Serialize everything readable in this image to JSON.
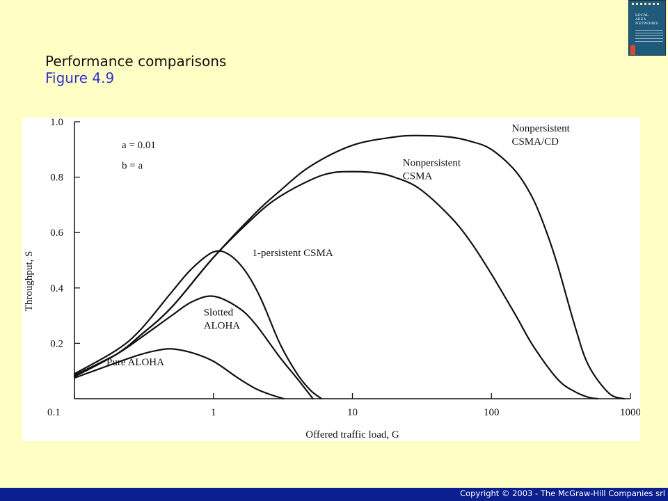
{
  "slide": {
    "title": "Performance comparisons",
    "subtitle": "Figure 4.9",
    "footer": "Copyright © 2003 - The McGraw-Hill Companies srl",
    "colors": {
      "background": "#FFFFC5",
      "subtitle": "#3333CC",
      "footer_bar": "#0B1F8E"
    },
    "book_cover": {
      "icon": "book-cover-icon",
      "title_lines": [
        "LOCAL",
        "AREA",
        "NETWORKS"
      ]
    }
  },
  "chart_data": {
    "type": "line",
    "title": "",
    "xlabel": "Offered traffic load, G",
    "ylabel": "Throughput, S",
    "xscale": "log",
    "xlim": [
      0.1,
      1000
    ],
    "ylim": [
      0,
      1.0
    ],
    "x_ticks": [
      0.1,
      1,
      10,
      100,
      1000
    ],
    "x_tick_labels": [
      "0.1",
      "1",
      "10",
      "100",
      "1000"
    ],
    "y_ticks": [
      0.2,
      0.4,
      0.6,
      0.8,
      1.0
    ],
    "y_tick_labels": [
      "0.2",
      "0.4",
      "0.6",
      "0.8",
      "1.0"
    ],
    "grid": false,
    "legend": "none",
    "annotations": [
      {
        "name": "param-a",
        "lines": [
          "a = 0.01"
        ]
      },
      {
        "name": "param-b",
        "lines": [
          "b = a"
        ]
      }
    ],
    "series": [
      {
        "name": "Pure ALOHA",
        "label_lines": [
          "Pure ALOHA"
        ],
        "label_anchor": [
          0.17,
          0.12
        ],
        "x": [
          0.1,
          0.2,
          0.3,
          0.4,
          0.5,
          0.7,
          1,
          1.5,
          2,
          2.5,
          3.2
        ],
        "y": [
          0.075,
          0.13,
          0.16,
          0.175,
          0.18,
          0.166,
          0.135,
          0.075,
          0.037,
          0.017,
          0.0
        ]
      },
      {
        "name": "Slotted ALOHA",
        "label_lines": [
          "Slotted",
          "ALOHA"
        ],
        "label_anchor": [
          0.85,
          0.3
        ],
        "x": [
          0.1,
          0.2,
          0.3,
          0.5,
          0.7,
          1,
          1.5,
          2,
          3,
          4,
          5.2
        ],
        "y": [
          0.085,
          0.16,
          0.22,
          0.3,
          0.35,
          0.37,
          0.33,
          0.27,
          0.15,
          0.073,
          0.0
        ]
      },
      {
        "name": "1-persistent CSMA",
        "label_lines": [
          "1-persistent CSMA"
        ],
        "label_anchor": [
          1.9,
          0.515
        ],
        "x": [
          0.1,
          0.2,
          0.3,
          0.5,
          0.7,
          1,
          1.3,
          1.7,
          2.2,
          3,
          4,
          5,
          6
        ],
        "y": [
          0.09,
          0.175,
          0.25,
          0.385,
          0.47,
          0.53,
          0.52,
          0.46,
          0.36,
          0.2,
          0.09,
          0.03,
          0.0
        ]
      },
      {
        "name": "Nonpersistent CSMA",
        "label_lines": [
          "Nonpersistent",
          "CSMA"
        ],
        "label_anchor": [
          23,
          0.84
        ],
        "x": [
          0.1,
          0.2,
          0.3,
          0.5,
          1,
          2,
          3,
          5,
          7,
          10,
          15,
          20,
          30,
          50,
          70,
          100,
          150,
          200,
          300,
          400,
          500,
          580
        ],
        "y": [
          0.08,
          0.16,
          0.23,
          0.33,
          0.51,
          0.66,
          0.73,
          0.79,
          0.815,
          0.82,
          0.815,
          0.8,
          0.76,
          0.66,
          0.57,
          0.45,
          0.3,
          0.19,
          0.07,
          0.025,
          0.005,
          0.0
        ]
      },
      {
        "name": "Nonpersistent CSMA/CD",
        "label_lines": [
          "Nonpersistent",
          "CSMA/CD"
        ],
        "label_anchor": [
          140,
          0.965
        ],
        "x": [
          0.1,
          0.2,
          0.3,
          0.5,
          1,
          2,
          3,
          5,
          10,
          20,
          30,
          50,
          70,
          100,
          150,
          200,
          250,
          300,
          400,
          500,
          700,
          900
        ],
        "y": [
          0.08,
          0.16,
          0.23,
          0.33,
          0.51,
          0.67,
          0.75,
          0.84,
          0.915,
          0.945,
          0.95,
          0.945,
          0.93,
          0.9,
          0.82,
          0.72,
          0.6,
          0.48,
          0.26,
          0.12,
          0.02,
          0.0
        ]
      }
    ]
  }
}
